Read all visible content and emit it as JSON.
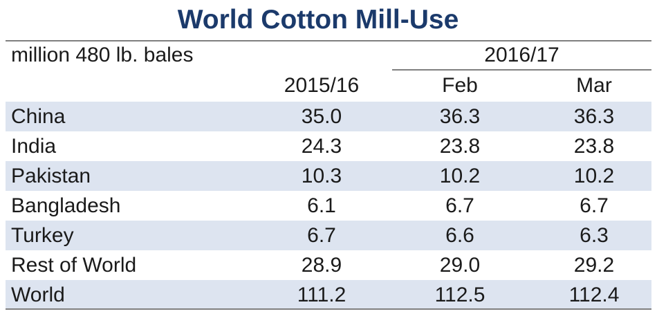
{
  "chart_data": {
    "type": "table",
    "title": "World Cotton Mill-Use",
    "unit_label": "million 480 lb. bales",
    "column_group": "2016/17",
    "columns": [
      "2015/16",
      "Feb",
      "Mar"
    ],
    "rows": [
      {
        "label": "China",
        "values": [
          "35.0",
          "36.3",
          "36.3"
        ]
      },
      {
        "label": "India",
        "values": [
          "24.3",
          "23.8",
          "23.8"
        ]
      },
      {
        "label": "Pakistan",
        "values": [
          "10.3",
          "10.2",
          "10.2"
        ]
      },
      {
        "label": "Bangladesh",
        "values": [
          "6.1",
          "6.7",
          "6.7"
        ]
      },
      {
        "label": "Turkey",
        "values": [
          "6.7",
          "6.6",
          "6.3"
        ]
      },
      {
        "label": "Rest of World",
        "values": [
          "28.9",
          "29.0",
          "29.2"
        ]
      },
      {
        "label": "World",
        "values": [
          "111.2",
          "112.5",
          "112.4"
        ]
      }
    ]
  },
  "colors": {
    "title": "#1b3a6b",
    "row_shade": "#dde4f0",
    "rule": "#7f7f7f",
    "text": "#1a1a1a"
  }
}
